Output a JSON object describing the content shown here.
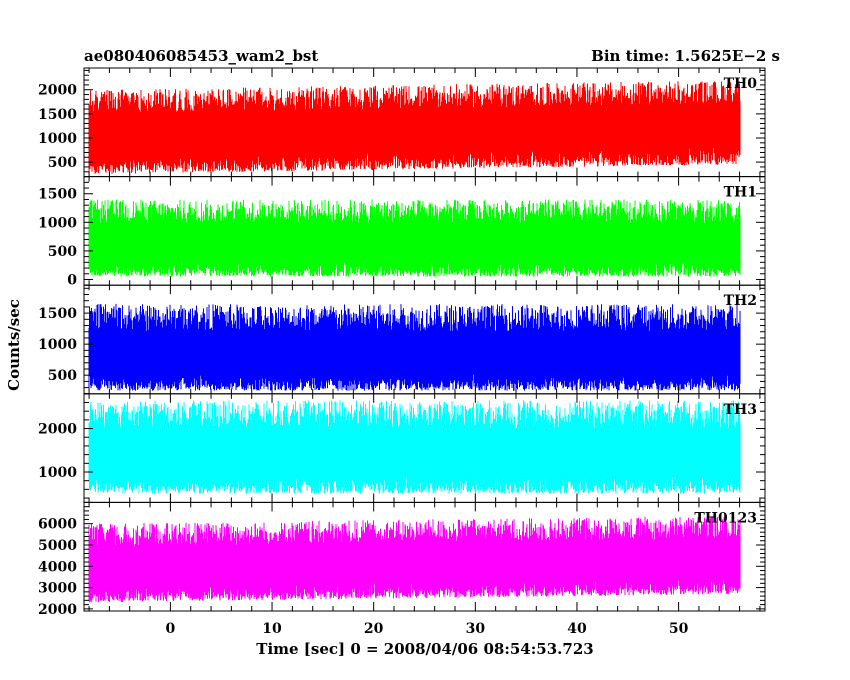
{
  "chart_data": {
    "type": "line",
    "title_left": "ae080406085453_wam2_bst",
    "title_right": "Bin time: 1.5625E−2 s",
    "xlabel": "Time [sec] 0 = 2008/04/06 08:54:53.723",
    "ylabel": "Counts/sec",
    "xlim": [
      -8.5,
      58.5
    ],
    "x_data_range": [
      -8,
      56
    ],
    "xticks": [
      0,
      10,
      20,
      30,
      40,
      50
    ],
    "xtick_labels": [
      "0",
      "10",
      "20",
      "30",
      "40",
      "50"
    ],
    "panels": [
      {
        "name": "TH0",
        "color": "#ff0000",
        "ylim": [
          200,
          2450
        ],
        "yticks": [
          500,
          1000,
          1500,
          2000
        ],
        "ytick_labels": [
          "500",
          "1000",
          "1500",
          "2000"
        ],
        "mean": 1200,
        "spread_low": 850,
        "spread_high": 900,
        "trend_start": 1100,
        "trend_end": 1300
      },
      {
        "name": "TH1",
        "color": "#00ff00",
        "ylim": [
          -100,
          1800
        ],
        "yticks": [
          0,
          500,
          1000,
          1500
        ],
        "ytick_labels": [
          "0",
          "500",
          "1000",
          "1500"
        ],
        "mean": 650,
        "spread_low": 600,
        "spread_high": 750,
        "trend_start": 650,
        "trend_end": 650
      },
      {
        "name": "TH2",
        "color": "#0000ff",
        "ylim": [
          200,
          1950
        ],
        "yticks": [
          500,
          1000,
          1500
        ],
        "ytick_labels": [
          "500",
          "1000",
          "1500"
        ],
        "mean": 850,
        "spread_low": 600,
        "spread_high": 800,
        "trend_start": 850,
        "trend_end": 850
      },
      {
        "name": "TH3",
        "color": "#00ffff",
        "ylim": [
          300,
          2800
        ],
        "yticks": [
          1000,
          2000
        ],
        "ytick_labels": [
          "1000",
          "2000"
        ],
        "mean": 1500,
        "spread_low": 1000,
        "spread_high": 1150,
        "trend_start": 1500,
        "trend_end": 1500
      },
      {
        "name": "TH0123",
        "color": "#ff00ff",
        "ylim": [
          1900,
          7000
        ],
        "yticks": [
          2000,
          3000,
          4000,
          5000,
          6000
        ],
        "ytick_labels": [
          "2000",
          "3000",
          "4000",
          "5000",
          "6000"
        ],
        "mean": 4200,
        "spread_low": 1700,
        "spread_high": 2000,
        "trend_start": 4000,
        "trend_end": 4400
      }
    ]
  }
}
